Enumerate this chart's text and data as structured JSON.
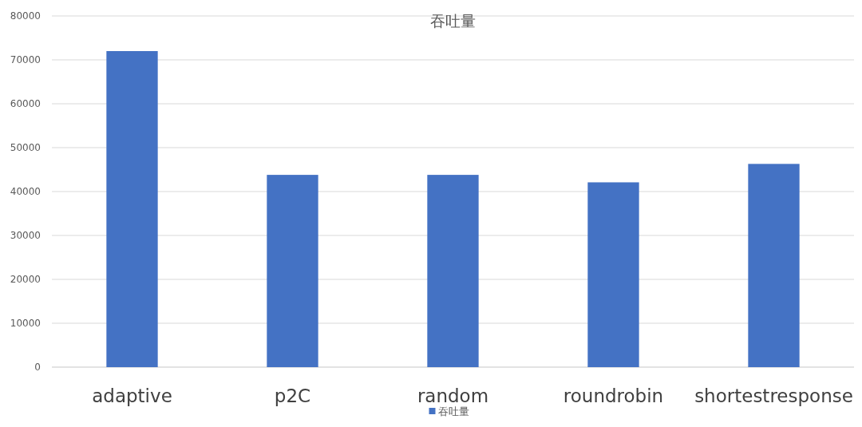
{
  "chart_data": {
    "type": "bar",
    "title": "吞吐量",
    "categories": [
      "adaptive",
      "p2C",
      "random",
      "roundrobin",
      "shortestresponse"
    ],
    "series": [
      {
        "name": "吞吐量",
        "color": "#4472c4",
        "values": [
          72000,
          43800,
          43800,
          42100,
          46300
        ]
      }
    ],
    "ylim": [
      0,
      80000
    ],
    "yticks": [
      0,
      10000,
      20000,
      30000,
      40000,
      50000,
      60000,
      70000,
      80000
    ],
    "grid": "y",
    "legend": "bottom"
  }
}
